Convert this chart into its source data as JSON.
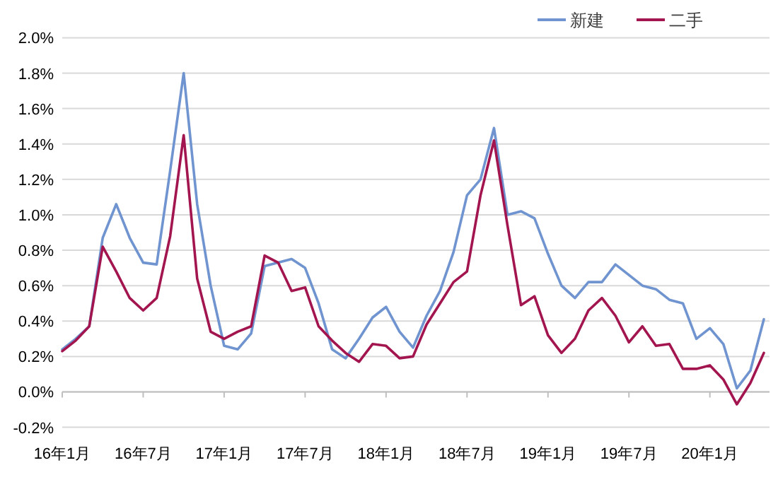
{
  "chart_data": {
    "type": "line",
    "categories": [
      "16年1月",
      null,
      null,
      null,
      null,
      null,
      "16年7月",
      null,
      null,
      null,
      null,
      null,
      "17年1月",
      null,
      null,
      null,
      null,
      null,
      "17年7月",
      null,
      null,
      null,
      null,
      null,
      "18年1月",
      null,
      null,
      null,
      null,
      null,
      "18年7月",
      null,
      null,
      null,
      null,
      null,
      "19年1月",
      null,
      null,
      null,
      null,
      null,
      "19年7月",
      null,
      null,
      null,
      null,
      null,
      "20年1月",
      null,
      null,
      null,
      null
    ],
    "series": [
      {
        "name": "新建",
        "color": "#7094cf",
        "values": [
          0.24,
          0.3,
          0.37,
          0.87,
          1.06,
          0.87,
          0.73,
          0.72,
          1.25,
          1.8,
          1.06,
          0.6,
          0.26,
          0.24,
          0.33,
          0.71,
          0.73,
          0.75,
          0.7,
          0.5,
          0.24,
          0.19,
          0.3,
          0.42,
          0.48,
          0.34,
          0.25,
          0.43,
          0.57,
          0.79,
          1.11,
          1.2,
          1.49,
          1.0,
          1.02,
          0.98,
          0.78,
          0.6,
          0.53,
          0.62,
          0.62,
          0.72,
          0.66,
          0.6,
          0.58,
          0.52,
          0.5,
          0.3,
          0.36,
          0.27,
          0.02,
          0.12,
          0.41
        ]
      },
      {
        "name": "二手",
        "color": "#a3154f",
        "values": [
          0.23,
          0.29,
          0.37,
          0.82,
          0.68,
          0.53,
          0.46,
          0.53,
          0.88,
          1.45,
          0.64,
          0.34,
          0.3,
          0.34,
          0.37,
          0.77,
          0.73,
          0.57,
          0.59,
          0.37,
          0.29,
          0.22,
          0.17,
          0.27,
          0.26,
          0.19,
          0.2,
          0.38,
          0.5,
          0.62,
          0.68,
          1.11,
          1.42,
          0.94,
          0.49,
          0.54,
          0.32,
          0.22,
          0.3,
          0.46,
          0.53,
          0.43,
          0.28,
          0.37,
          0.26,
          0.27,
          0.13,
          0.13,
          0.15,
          0.07,
          -0.07,
          0.05,
          0.22
        ]
      }
    ],
    "ylim": [
      -0.2,
      2.0
    ],
    "yticks": [
      {
        "value": -0.2,
        "label": "-0.2%"
      },
      {
        "value": 0,
        "label": "0.0%"
      },
      {
        "value": 0.2,
        "label": "0.2%"
      },
      {
        "value": 0.4,
        "label": "0.4%"
      },
      {
        "value": 0.6,
        "label": "0.6%"
      },
      {
        "value": 0.8,
        "label": "0.8%"
      },
      {
        "value": 1.0,
        "label": "1.0%"
      },
      {
        "value": 1.2,
        "label": "1.2%"
      },
      {
        "value": 1.4,
        "label": "1.4%"
      },
      {
        "value": 1.6,
        "label": "1.6%"
      },
      {
        "value": 1.8,
        "label": "1.8%"
      },
      {
        "value": 2.0,
        "label": "2.0%"
      }
    ],
    "grid": "y",
    "legend": "top right"
  }
}
